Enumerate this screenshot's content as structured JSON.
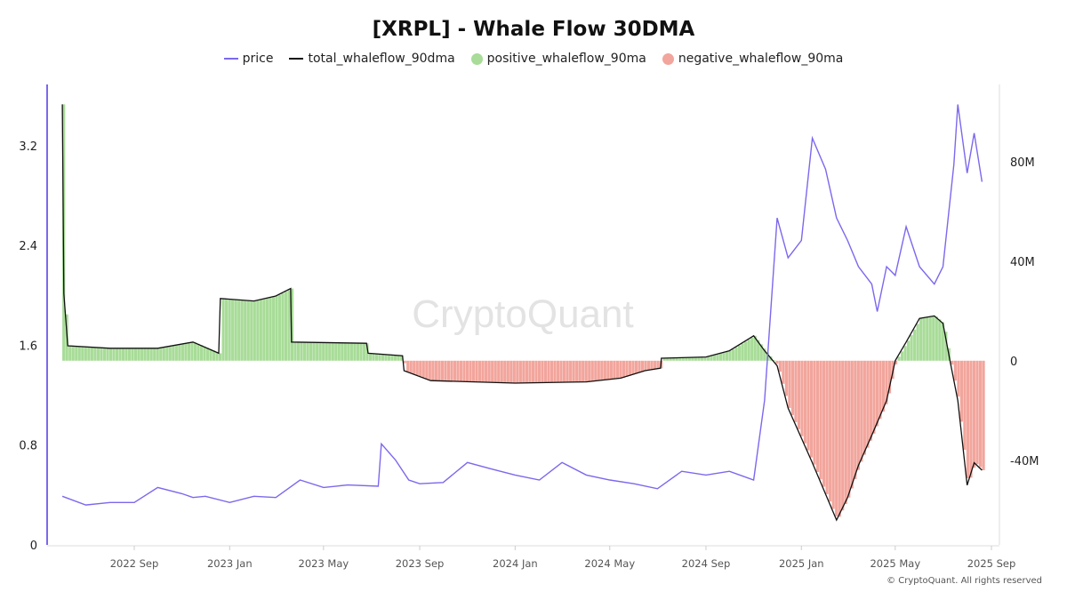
{
  "title": "[XRPL] - Whale Flow 30DMA",
  "watermark": "CryptoQuant",
  "footer": "© CryptoQuant. All rights reserved",
  "colors": {
    "price": "#7b68ee",
    "total": "#111111",
    "positive": "#a8dc98",
    "negative": "#f2a59c",
    "left_axis": "#7b68ee"
  },
  "chart_data": {
    "type": "line+bar",
    "title": "[XRPL] - Whale Flow 30DMA",
    "legend_position": "top",
    "legend": [
      {
        "name": "price",
        "kind": "line",
        "color": "#7b68ee"
      },
      {
        "name": "total_whaleflow_90dma",
        "kind": "line",
        "color": "#111111"
      },
      {
        "name": "positive_whaleflow_90ma",
        "kind": "bar",
        "color": "#a8dc98"
      },
      {
        "name": "negative_whaleflow_90ma",
        "kind": "bar",
        "color": "#f2a59c"
      }
    ],
    "x_ticks": [
      "2022 Sep",
      "2023 Jan",
      "2023 May",
      "2023 Sep",
      "2024 Jan",
      "2024 May",
      "2024 Sep",
      "2025 Jan",
      "2025 May",
      "2025 Sep"
    ],
    "x_tick_dates": [
      "2022-09-01",
      "2023-01-01",
      "2023-05-01",
      "2023-09-01",
      "2024-01-01",
      "2024-05-01",
      "2024-09-01",
      "2025-01-01",
      "2025-05-01",
      "2025-09-01"
    ],
    "x_range": [
      "2022-05-02",
      "2025-09-15"
    ],
    "y_left": {
      "ticks": [
        "0",
        "0.8",
        "1.6",
        "2.4",
        "3.2"
      ],
      "values": [
        0,
        0.8,
        1.6,
        2.4,
        3.2
      ],
      "range": [
        0,
        3.69
      ]
    },
    "y_right": {
      "ticks": [
        "-40M",
        "0",
        "40M",
        "80M"
      ],
      "values": [
        -40,
        0,
        40,
        80
      ],
      "unit": "M",
      "range": [
        -74,
        111
      ]
    },
    "grid": false,
    "price": [
      [
        "2022-06-01",
        0.39
      ],
      [
        "2022-07-01",
        0.32
      ],
      [
        "2022-08-01",
        0.34
      ],
      [
        "2022-09-01",
        0.34
      ],
      [
        "2022-10-01",
        0.46
      ],
      [
        "2022-11-01",
        0.41
      ],
      [
        "2022-11-15",
        0.38
      ],
      [
        "2022-12-01",
        0.39
      ],
      [
        "2023-01-01",
        0.34
      ],
      [
        "2023-02-01",
        0.39
      ],
      [
        "2023-03-01",
        0.38
      ],
      [
        "2023-04-01",
        0.52
      ],
      [
        "2023-05-01",
        0.46
      ],
      [
        "2023-06-01",
        0.48
      ],
      [
        "2023-07-10",
        0.47
      ],
      [
        "2023-07-14",
        0.81
      ],
      [
        "2023-08-01",
        0.68
      ],
      [
        "2023-08-18",
        0.52
      ],
      [
        "2023-09-01",
        0.49
      ],
      [
        "2023-10-01",
        0.5
      ],
      [
        "2023-11-01",
        0.66
      ],
      [
        "2023-12-01",
        0.61
      ],
      [
        "2024-01-01",
        0.56
      ],
      [
        "2024-02-01",
        0.52
      ],
      [
        "2024-03-01",
        0.66
      ],
      [
        "2024-04-01",
        0.56
      ],
      [
        "2024-05-01",
        0.52
      ],
      [
        "2024-06-01",
        0.49
      ],
      [
        "2024-07-01",
        0.45
      ],
      [
        "2024-08-01",
        0.59
      ],
      [
        "2024-09-01",
        0.56
      ],
      [
        "2024-10-01",
        0.59
      ],
      [
        "2024-11-01",
        0.52
      ],
      [
        "2024-11-15",
        1.16
      ],
      [
        "2024-12-01",
        2.62
      ],
      [
        "2024-12-15",
        2.3
      ],
      [
        "2025-01-01",
        2.44
      ],
      [
        "2025-01-15",
        3.26
      ],
      [
        "2025-02-01",
        3.01
      ],
      [
        "2025-02-15",
        2.62
      ],
      [
        "2025-03-01",
        2.44
      ],
      [
        "2025-03-15",
        2.23
      ],
      [
        "2025-04-01",
        2.09
      ],
      [
        "2025-04-08",
        1.87
      ],
      [
        "2025-04-20",
        2.23
      ],
      [
        "2025-05-01",
        2.16
      ],
      [
        "2025-05-15",
        2.55
      ],
      [
        "2025-06-01",
        2.23
      ],
      [
        "2025-06-20",
        2.09
      ],
      [
        "2025-07-01",
        2.23
      ],
      [
        "2025-07-15",
        3.05
      ],
      [
        "2025-07-20",
        3.53
      ],
      [
        "2025-08-01",
        2.98
      ],
      [
        "2025-08-10",
        3.3
      ],
      [
        "2025-08-20",
        2.91
      ]
    ],
    "total_whaleflow_90dma": [
      [
        "2022-06-01",
        103
      ],
      [
        "2022-06-03",
        27
      ],
      [
        "2022-06-08",
        6
      ],
      [
        "2022-08-01",
        5
      ],
      [
        "2022-10-01",
        5
      ],
      [
        "2022-11-15",
        7.5
      ],
      [
        "2022-12-18",
        3
      ],
      [
        "2022-12-20",
        25
      ],
      [
        "2023-02-01",
        24
      ],
      [
        "2023-03-01",
        26
      ],
      [
        "2023-03-20",
        29
      ],
      [
        "2023-03-21",
        7.5
      ],
      [
        "2023-06-25",
        7
      ],
      [
        "2023-06-27",
        3
      ],
      [
        "2023-08-10",
        2
      ],
      [
        "2023-08-12",
        -4
      ],
      [
        "2023-09-15",
        -8
      ],
      [
        "2024-01-01",
        -9
      ],
      [
        "2024-04-01",
        -8.5
      ],
      [
        "2024-05-15",
        -7
      ],
      [
        "2024-06-15",
        -4
      ],
      [
        "2024-07-05",
        -3
      ],
      [
        "2024-07-06",
        1
      ],
      [
        "2024-09-01",
        1.5
      ],
      [
        "2024-10-01",
        4
      ],
      [
        "2024-11-01",
        10
      ],
      [
        "2024-11-15",
        4
      ],
      [
        "2024-12-01",
        -2
      ],
      [
        "2024-12-15",
        -19
      ],
      [
        "2025-01-15",
        -41
      ],
      [
        "2025-02-15",
        -64
      ],
      [
        "2025-03-01",
        -55
      ],
      [
        "2025-03-15",
        -42
      ],
      [
        "2025-04-01",
        -30
      ],
      [
        "2025-04-20",
        -16
      ],
      [
        "2025-05-01",
        0
      ],
      [
        "2025-05-15",
        7.5
      ],
      [
        "2025-06-01",
        17
      ],
      [
        "2025-06-20",
        18
      ],
      [
        "2025-07-01",
        15
      ],
      [
        "2025-07-10",
        0
      ],
      [
        "2025-07-20",
        -16
      ],
      [
        "2025-08-01",
        -50
      ],
      [
        "2025-08-10",
        -41
      ],
      [
        "2025-08-20",
        -44
      ]
    ]
  }
}
